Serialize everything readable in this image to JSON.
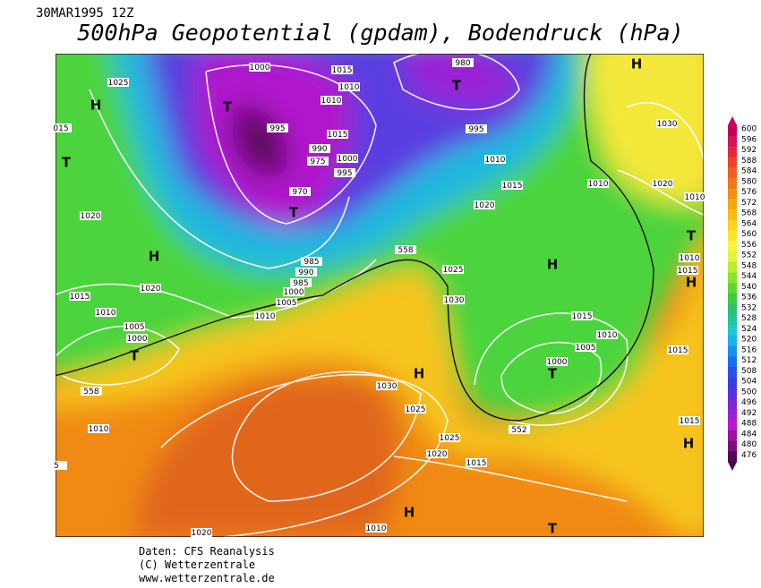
{
  "header": {
    "date": "30MAR1995 12Z",
    "title": "500hPa Geopotential (gpdam), Bodendruck (hPa)"
  },
  "map": {
    "isobar_labels": [
      "1000",
      "1025",
      "1015",
      "1010",
      "1010",
      "1015",
      "995",
      "990",
      "975",
      "1000",
      "995",
      "970",
      "985",
      "990",
      "985",
      "1000",
      "1005",
      "1010",
      "980",
      "995",
      "1010",
      "1015",
      "1020",
      "1020",
      "1020",
      "1015",
      "1010",
      "1005",
      "1000",
      "558",
      "1025",
      "1030",
      "1015",
      "1010",
      "1005",
      "1000",
      "558",
      "1030",
      "1025",
      "1010",
      "552",
      "1025",
      "1020",
      "1015",
      "1010",
      "1020",
      "1030",
      "1020",
      "1010",
      "1010",
      "1010",
      "1015",
      "1015",
      "1015",
      "015",
      "5"
    ],
    "pressure_centers": [
      "H",
      "T",
      "T",
      "T",
      "H",
      "T",
      "T",
      "H",
      "H",
      "H",
      "T",
      "H",
      "T",
      "T",
      "H",
      "H"
    ]
  },
  "colorbar": {
    "labels": [
      "600",
      "596",
      "592",
      "588",
      "584",
      "580",
      "576",
      "572",
      "568",
      "564",
      "560",
      "556",
      "552",
      "548",
      "544",
      "540",
      "536",
      "532",
      "528",
      "524",
      "520",
      "516",
      "512",
      "508",
      "504",
      "500",
      "496",
      "492",
      "488",
      "484",
      "480",
      "476"
    ],
    "colors": [
      "#c4005a",
      "#d4145a",
      "#e02a3c",
      "#e8452a",
      "#ee6020",
      "#f07818",
      "#f38e14",
      "#f6a612",
      "#f8bc14",
      "#fad31a",
      "#fbe626",
      "#f7f53a",
      "#e2f53c",
      "#b8ee30",
      "#8ae42c",
      "#5cd82e",
      "#3ccc44",
      "#2ec070",
      "#22c4a0",
      "#1cc8d0",
      "#18b4ec",
      "#1890f0",
      "#1c6cf0",
      "#2850e8",
      "#3c3ce0",
      "#5a30dc",
      "#7a28d8",
      "#9a20d4",
      "#b818cc",
      "#a010a8",
      "#781078",
      "#500a50"
    ]
  },
  "footer": {
    "lines": [
      "Daten: CFS Reanalysis",
      "(C) Wetterzentrale",
      "www.wetterzentrale.de"
    ]
  }
}
